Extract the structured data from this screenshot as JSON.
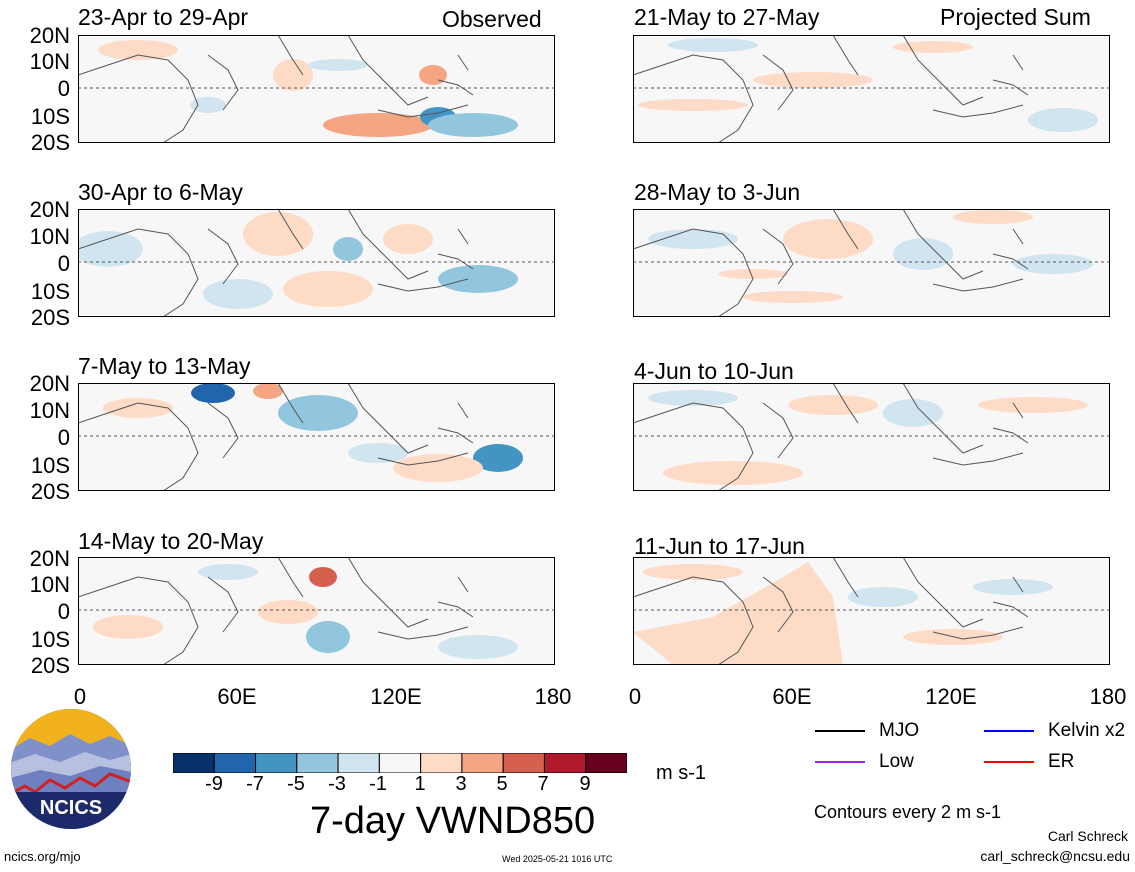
{
  "observed_label": "Observed",
  "projected_label": "Projected Sum",
  "panels": {
    "left": [
      {
        "title": "23-Apr to 29-Apr"
      },
      {
        "title": "30-Apr to 6-May"
      },
      {
        "title": "7-May to 13-May"
      },
      {
        "title": "14-May to 20-May"
      }
    ],
    "right": [
      {
        "title": "21-May to 27-May"
      },
      {
        "title": "28-May to 3-Jun"
      },
      {
        "title": "4-Jun to 10-Jun"
      },
      {
        "title": "11-Jun to 17-Jun"
      }
    ]
  },
  "lat_labels": [
    "20N",
    "10N",
    "0",
    "10S",
    "20S"
  ],
  "lon_labels": [
    "0",
    "60E",
    "120E",
    "180"
  ],
  "colorbar": {
    "labels": [
      "-9",
      "-7",
      "-5",
      "-3",
      "-1",
      "1",
      "3",
      "5",
      "7",
      "9"
    ],
    "colors": [
      "#08306b",
      "#2166ac",
      "#4393c3",
      "#92c5de",
      "#d1e5f0",
      "#f7f7f7",
      "#fddbc7",
      "#f4a582",
      "#d6604d",
      "#b2182b",
      "#67001f"
    ],
    "units": "m s-1"
  },
  "title": "7-day VWND850",
  "legend": [
    {
      "label": "MJO",
      "color": "#000000"
    },
    {
      "label": "Kelvin x2",
      "color": "#0000ff"
    },
    {
      "label": "Low",
      "color": "#a020f0"
    },
    {
      "label": "ER",
      "color": "#ff0000"
    }
  ],
  "contours_note": "Contours every 2 m s-1",
  "credit_name": "Carl Schreck",
  "credit_email": "carl_schreck@ncsu.edu",
  "site": "ncics.org/mjo",
  "timestamp": "Wed 2025-05-21 1016 UTC",
  "logo_text": "NCICS"
}
